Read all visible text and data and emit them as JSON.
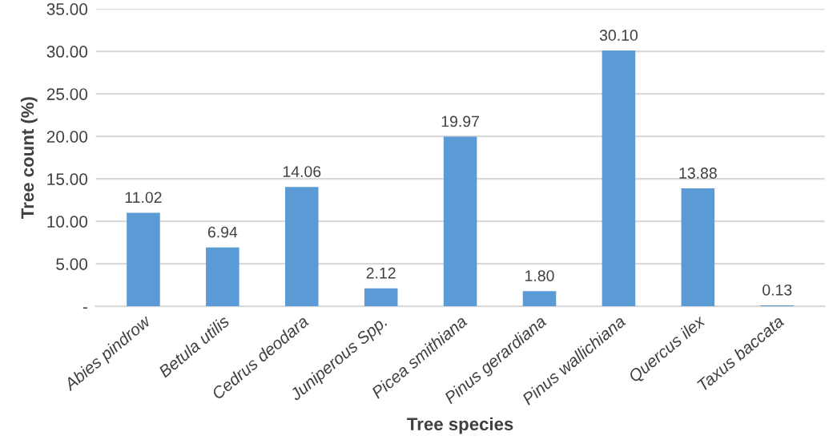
{
  "chart_data": {
    "type": "bar",
    "xlabel": "Tree species",
    "ylabel": "Tree count (%)",
    "categories": [
      "Abies pindrow",
      "Betula utilis",
      "Cedrus deodara",
      "Juniperous Spp.",
      "Picea smithiana",
      "Pinus gerardiana",
      "Pinus wallichiana",
      "Quercus ilex",
      "Taxus baccata"
    ],
    "values": [
      11.02,
      6.94,
      14.06,
      2.12,
      19.97,
      1.8,
      30.1,
      13.88,
      0.13
    ],
    "value_labels": [
      "11.02",
      "6.94",
      "14.06",
      "2.12",
      "19.97",
      "1.80",
      "30.10",
      "13.88",
      "0.13"
    ],
    "color": "#5b9bd5",
    "ylim": [
      0,
      35
    ],
    "yticks": [
      {
        "value": 0,
        "label": "-"
      },
      {
        "value": 5,
        "label": "5.00"
      },
      {
        "value": 10,
        "label": "10.00"
      },
      {
        "value": 15,
        "label": "15.00"
      },
      {
        "value": 20,
        "label": "20.00"
      },
      {
        "value": 25,
        "label": "25.00"
      },
      {
        "value": 30,
        "label": "30.00"
      },
      {
        "value": 35,
        "label": "35.00"
      }
    ],
    "grid": "y",
    "legend": false
  }
}
